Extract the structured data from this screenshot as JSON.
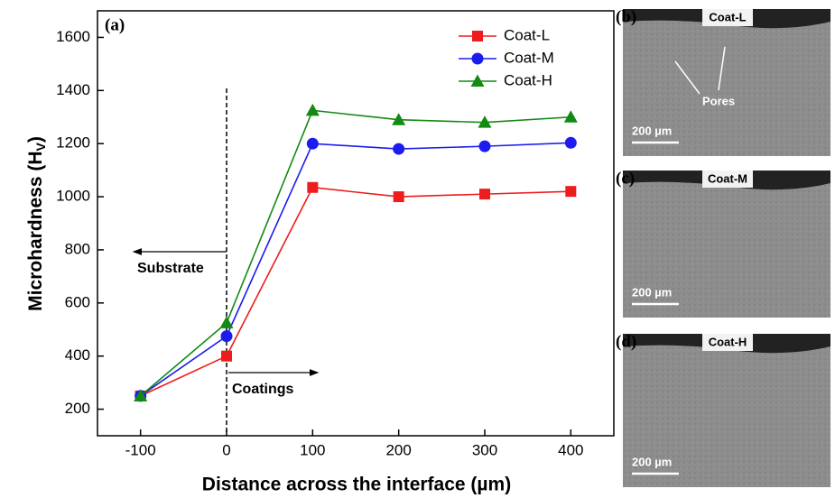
{
  "chart_data": {
    "type": "line",
    "panel_label": "(a)",
    "x_label": "Distance across the interface (µm)",
    "y_label": "Microhardness (H",
    "y_label_sub": "V",
    "y_label_end": ")",
    "x": [
      -100,
      0,
      100,
      200,
      300,
      400
    ],
    "series": [
      {
        "name": "Coat-L",
        "color": "#ee1c1c",
        "marker": "square",
        "values": [
          250,
          400,
          1035,
          1000,
          1010,
          1020
        ]
      },
      {
        "name": "Coat-M",
        "color": "#1c1cee",
        "marker": "circle",
        "values": [
          250,
          475,
          1200,
          1180,
          1190,
          1203
        ]
      },
      {
        "name": "Coat-H",
        "color": "#138a13",
        "marker": "triangle",
        "values": [
          250,
          525,
          1325,
          1290,
          1280,
          1300
        ]
      }
    ],
    "xlim": [
      -150,
      450
    ],
    "xticks": [
      -100,
      0,
      100,
      200,
      300,
      400
    ],
    "ylim": [
      100,
      1700
    ],
    "yticks": [
      200,
      400,
      600,
      800,
      1000,
      1200,
      1400,
      1600
    ],
    "legend": "upper right",
    "annotations": [
      "Substrate",
      "Coatings"
    ]
  },
  "panels": [
    {
      "label": "(b)",
      "tag": "Coat-L",
      "note": "Pores",
      "scale": "200 µm"
    },
    {
      "label": "(c)",
      "tag": "Coat-M",
      "scale": "200 µm"
    },
    {
      "label": "(d)",
      "tag": "Coat-H",
      "scale": "200 µm"
    }
  ]
}
